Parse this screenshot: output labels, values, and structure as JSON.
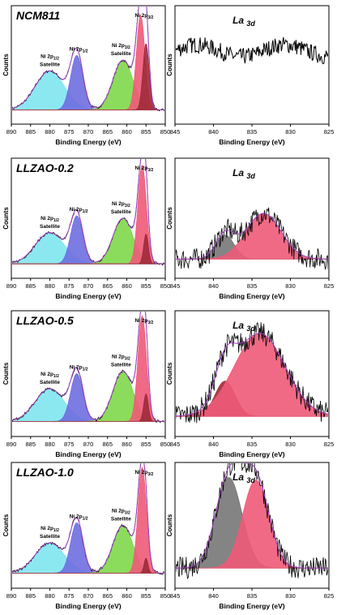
{
  "colors": {
    "cyan": "#7fe6ee",
    "blue": "#6e6ee0",
    "green": "#7ed84a",
    "red": "#ee5a78",
    "darkred": "#9e2a3a",
    "gray": "#777777",
    "envelope": "#a040c0",
    "raw": "#000000"
  },
  "chart_data": [
    {
      "type": "line",
      "title": "NCM811",
      "xlabel": "Binding Energy (eV)",
      "ylabel": "Counts",
      "xlim": [
        890,
        850
      ],
      "xticks": [
        890,
        885,
        880,
        875,
        870,
        865,
        860,
        855,
        850
      ],
      "peak_labels": [
        {
          "text": "Ni 2p",
          "sub": "3/2",
          "x": 855.5
        },
        {
          "text": "Ni 2p",
          "sub": "3/2",
          "extra": "Satellite",
          "x": 861.5
        },
        {
          "text": "Ni 2p",
          "sub": "1/2",
          "x": 872.5
        },
        {
          "text": "Ni 2p",
          "sub": "1/2",
          "extra": "Satellite",
          "x": 880
        }
      ],
      "series": [
        {
          "color": "cyan",
          "center": 880,
          "height": 0.33,
          "width": 3.8
        },
        {
          "color": "blue",
          "center": 873,
          "height": 0.46,
          "width": 1.6
        },
        {
          "color": "green",
          "center": 861,
          "height": 0.42,
          "width": 2.6
        },
        {
          "color": "red",
          "center": 856.4,
          "height": 0.8,
          "width": 1.1
        },
        {
          "color": "darkred",
          "center": 855,
          "height": 0.56,
          "width": 0.8
        }
      ]
    },
    {
      "type": "line",
      "title": "La",
      "title_sub": "3d",
      "xlabel": "Binding Energy (eV)",
      "ylabel": "Counts",
      "xlim": [
        845,
        825
      ],
      "xticks": [
        845,
        840,
        835,
        830,
        825
      ],
      "series": []
    },
    {
      "type": "line",
      "title": "LLZAO-0.2",
      "xlabel": "Binding Energy (eV)",
      "ylabel": "Counts",
      "xlim": [
        890,
        850
      ],
      "xticks": [
        890,
        885,
        880,
        875,
        870,
        865,
        860,
        855,
        850
      ],
      "peak_labels": [
        {
          "text": "Ni 2p",
          "sub": "3/2",
          "x": 855.5
        },
        {
          "text": "Ni 2p",
          "sub": "3/2",
          "extra": "Satellite",
          "x": 861.5
        },
        {
          "text": "Ni 2p",
          "sub": "1/2",
          "x": 872.5
        },
        {
          "text": "Ni 2p",
          "sub": "1/2",
          "extra": "Satellite",
          "x": 880
        }
      ],
      "series": [
        {
          "color": "cyan",
          "center": 880,
          "height": 0.26,
          "width": 3.8
        },
        {
          "color": "blue",
          "center": 873,
          "height": 0.4,
          "width": 1.6
        },
        {
          "color": "green",
          "center": 861,
          "height": 0.38,
          "width": 2.6
        },
        {
          "color": "red",
          "center": 856,
          "height": 0.82,
          "width": 1.1
        },
        {
          "color": "darkred",
          "center": 855,
          "height": 0.25,
          "width": 0.6
        }
      ]
    },
    {
      "type": "line",
      "title": "La",
      "title_sub": "3d",
      "xlabel": "Binding Energy (eV)",
      "ylabel": "Counts",
      "xlim": [
        845,
        825
      ],
      "xticks": [
        845,
        840,
        835,
        830,
        825
      ],
      "series": [
        {
          "color": "gray",
          "center": 838.5,
          "height": 0.2,
          "width": 1.2
        },
        {
          "color": "red",
          "center": 833.5,
          "height": 0.38,
          "width": 2.3
        }
      ]
    },
    {
      "type": "line",
      "title": "LLZAO-0.5",
      "xlabel": "Binding Energy (eV)",
      "ylabel": "Counts",
      "xlim": [
        890,
        850
      ],
      "xticks": [
        890,
        885,
        880,
        875,
        870,
        865,
        860,
        855,
        850
      ],
      "peak_labels": [
        {
          "text": "Ni 2p",
          "sub": "3/2",
          "x": 855.5
        },
        {
          "text": "Ni 2p",
          "sub": "3/2",
          "extra": "Satellite",
          "x": 861.5
        },
        {
          "text": "Ni 2p",
          "sub": "1/2",
          "x": 872.5
        },
        {
          "text": "Ni 2p",
          "sub": "1/2",
          "extra": "Satellite",
          "x": 880
        }
      ],
      "series": [
        {
          "color": "cyan",
          "center": 880,
          "height": 0.26,
          "width": 3.8
        },
        {
          "color": "blue",
          "center": 873,
          "height": 0.38,
          "width": 1.6
        },
        {
          "color": "green",
          "center": 861,
          "height": 0.4,
          "width": 2.6
        },
        {
          "color": "red",
          "center": 856,
          "height": 0.84,
          "width": 1.1
        },
        {
          "color": "darkred",
          "center": 855,
          "height": 0.22,
          "width": 0.6
        }
      ]
    },
    {
      "type": "line",
      "title": "La",
      "title_sub": "3d",
      "xlabel": "Binding Energy (eV)",
      "ylabel": "Counts",
      "xlim": [
        845,
        825
      ],
      "xticks": [
        845,
        840,
        835,
        830,
        825
      ],
      "series": [
        {
          "color": "darkred",
          "center": 838.5,
          "height": 0.28,
          "width": 1.3
        },
        {
          "color": "red",
          "center": 834,
          "height": 0.66,
          "width": 3.3
        }
      ]
    },
    {
      "type": "line",
      "title": "LLZAO-1.0",
      "xlabel": "Binding Energy (eV)",
      "ylabel": "Counts",
      "xlim": [
        890,
        850
      ],
      "xticks": [
        890,
        885,
        880,
        875,
        870,
        865,
        860,
        855,
        850
      ],
      "peak_labels": [
        {
          "text": "Ni 2p",
          "sub": "3/2",
          "x": 855.5
        },
        {
          "text": "Ni 2p",
          "sub": "3/2",
          "extra": "Satellite",
          "x": 861.5
        },
        {
          "text": "Ni 2p",
          "sub": "1/2",
          "x": 872.5
        },
        {
          "text": "Ni 2p",
          "sub": "1/2",
          "extra": "Satellite",
          "x": 880
        }
      ],
      "series": [
        {
          "color": "cyan",
          "center": 880,
          "height": 0.24,
          "width": 3.8
        },
        {
          "color": "blue",
          "center": 873,
          "height": 0.4,
          "width": 1.6
        },
        {
          "color": "green",
          "center": 861,
          "height": 0.38,
          "width": 2.6
        },
        {
          "color": "red",
          "center": 856,
          "height": 0.84,
          "width": 1.1
        },
        {
          "color": "darkred",
          "center": 855,
          "height": 0.12,
          "width": 0.5
        }
      ]
    },
    {
      "type": "line",
      "title": "La",
      "title_sub": "3d",
      "xlabel": "Binding Energy (eV)",
      "ylabel": "Counts",
      "xlim": [
        845,
        825
      ],
      "xticks": [
        845,
        840,
        835,
        830,
        825
      ],
      "series": [
        {
          "color": "gray",
          "center": 838,
          "height": 0.72,
          "width": 1.7
        },
        {
          "color": "red",
          "center": 834.5,
          "height": 0.7,
          "width": 1.7
        }
      ]
    }
  ]
}
